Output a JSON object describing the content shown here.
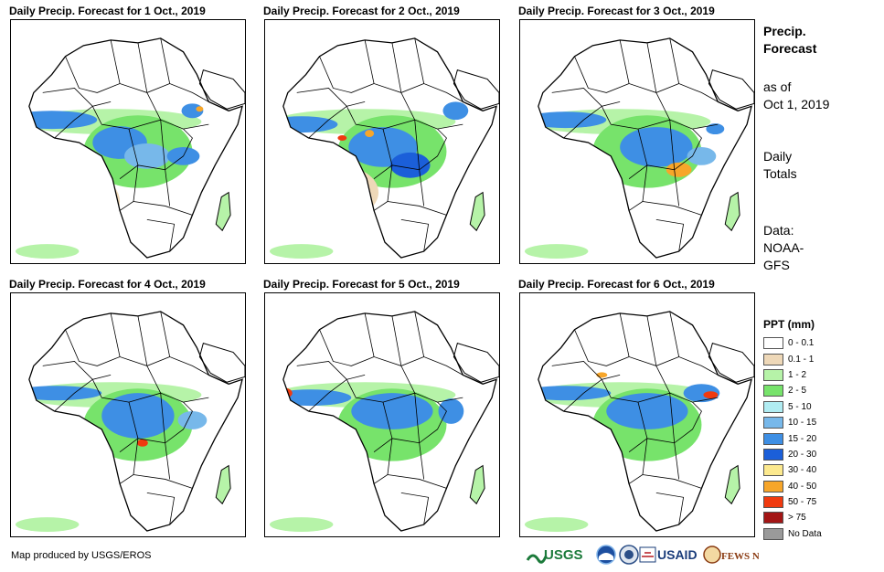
{
  "panels": [
    {
      "title": "Daily Precip. Forecast for 1 Oct., 2019"
    },
    {
      "title": "Daily Precip. Forecast for 2 Oct., 2019"
    },
    {
      "title": "Daily Precip. Forecast for 3 Oct., 2019"
    },
    {
      "title": "Daily Precip. Forecast for 4 Oct., 2019"
    },
    {
      "title": "Daily Precip. Forecast for 5 Oct., 2019"
    },
    {
      "title": "Daily Precip. Forecast for 6 Oct., 2019"
    }
  ],
  "sidebar": {
    "heading_line1": "Precip.",
    "heading_line2": "Forecast",
    "asof_line1": "as of",
    "asof_line2": "Oct 1, 2019",
    "totals_line1": "Daily",
    "totals_line2": "Totals",
    "data_line1": "Data:",
    "data_line2": "NOAA-",
    "data_line3": "GFS"
  },
  "legend": {
    "title": "PPT (mm)",
    "items": [
      {
        "label": "0 - 0.1",
        "color": "#ffffff"
      },
      {
        "label": "0.1 - 1",
        "color": "#eed8b8"
      },
      {
        "label": "1 - 2",
        "color": "#b6f3a8"
      },
      {
        "label": "2 - 5",
        "color": "#77e36b"
      },
      {
        "label": "5 - 10",
        "color": "#b0ecf2"
      },
      {
        "label": "10 - 15",
        "color": "#77b8ea"
      },
      {
        "label": "15 - 20",
        "color": "#3e8fe4"
      },
      {
        "label": "20 - 30",
        "color": "#1b5fd9"
      },
      {
        "label": "30 - 40",
        "color": "#fce98e"
      },
      {
        "label": "40 - 50",
        "color": "#f7a62a"
      },
      {
        "label": "50 - 75",
        "color": "#f03a0f"
      },
      {
        "label": "> 75",
        "color": "#a31515"
      },
      {
        "label": "No Data",
        "color": "#9a9a9a"
      }
    ]
  },
  "footer": {
    "credit": "Map produced by USGS/EROS",
    "logos": {
      "usgs": "USGS",
      "usaid": "USAID",
      "fews": "FEWS NET"
    }
  },
  "colors": {
    "desert": "#eed8b8",
    "light_green": "#b6f3a8",
    "green": "#77e36b",
    "blue_light": "#77b8ea",
    "blue": "#3e8fe4",
    "blue_dark": "#1b5fd9",
    "orange": "#f7a62a",
    "red": "#f03a0f"
  }
}
